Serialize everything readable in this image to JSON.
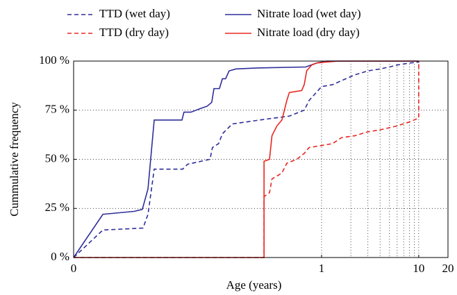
{
  "chart_data": {
    "type": "line",
    "xlabel": "Age (years)",
    "ylabel": "Cummulative frequency",
    "xscale": "linear to 1, log above",
    "xlim": [
      0,
      20
    ],
    "xticks": [
      0,
      1,
      10,
      20
    ],
    "xminor": [
      2,
      3,
      4,
      5,
      6,
      7,
      8,
      9
    ],
    "ylim": [
      0,
      100
    ],
    "yticks": [
      {
        "value": 0,
        "label": "0 %"
      },
      {
        "value": 25,
        "label": "25 %"
      },
      {
        "value": 50,
        "label": "50 %"
      },
      {
        "value": 75,
        "label": "75 %"
      },
      {
        "value": 100,
        "label": "100 %"
      }
    ],
    "grid": "dotted",
    "series": [
      {
        "name": "TTD (wet day)",
        "color": "#2e2e9a",
        "dash": true,
        "x": [
          0,
          0.118,
          0.28,
          0.3,
          0.325,
          0.44,
          0.46,
          0.55,
          0.56,
          0.585,
          0.6,
          0.64,
          0.75,
          0.87,
          0.93,
          0.95,
          1,
          1.3,
          1.6,
          2.2,
          3,
          4,
          5,
          6,
          8,
          10,
          10
        ],
        "values": [
          0,
          14,
          15,
          22,
          45,
          45,
          47.5,
          50,
          56,
          58,
          63,
          68,
          70,
          72,
          75,
          80,
          87,
          88,
          90,
          93,
          95,
          96,
          97,
          98,
          99,
          99.5,
          100
        ]
      },
      {
        "name": "Nitrate load (wet day)",
        "color": "#2e2e9a",
        "dash": false,
        "x": [
          0,
          0.118,
          0.244,
          0.277,
          0.3,
          0.325,
          0.437,
          0.445,
          0.473,
          0.515,
          0.538,
          0.557,
          0.566,
          0.588,
          0.6,
          0.613,
          0.627,
          0.655,
          0.74,
          0.936,
          0.98,
          1.12,
          10
        ],
        "values": [
          0,
          22,
          23.5,
          24.5,
          35,
          70,
          70,
          74,
          74,
          76,
          77,
          79,
          86,
          86,
          91,
          91,
          95,
          96,
          96.5,
          97,
          99,
          100,
          100
        ]
      },
      {
        "name": "TTD (dry day)",
        "color": "#e8261f",
        "dash": true,
        "x": [
          0,
          0.768,
          0.768,
          0.79,
          0.8,
          0.84,
          0.86,
          0.9,
          0.93,
          0.95,
          1,
          1.3,
          1.6,
          2.2,
          3,
          4,
          6,
          8,
          10,
          10
        ],
        "values": [
          0,
          0,
          31,
          33,
          40,
          43,
          48,
          50,
          53,
          56,
          57,
          58,
          61,
          62,
          64,
          65,
          67,
          69,
          71,
          100
        ]
      },
      {
        "name": "Nitrate load (dry day)",
        "color": "#e8261f",
        "dash": false,
        "x": [
          0,
          0.768,
          0.768,
          0.79,
          0.8,
          0.82,
          0.84,
          0.86,
          0.87,
          0.92,
          0.93,
          0.94,
          0.96,
          0.98,
          1.1,
          1.5,
          10
        ],
        "values": [
          0,
          0,
          49,
          50,
          62,
          67,
          70,
          80,
          84,
          85,
          88,
          95,
          98,
          99,
          99.5,
          100,
          100
        ]
      }
    ]
  }
}
